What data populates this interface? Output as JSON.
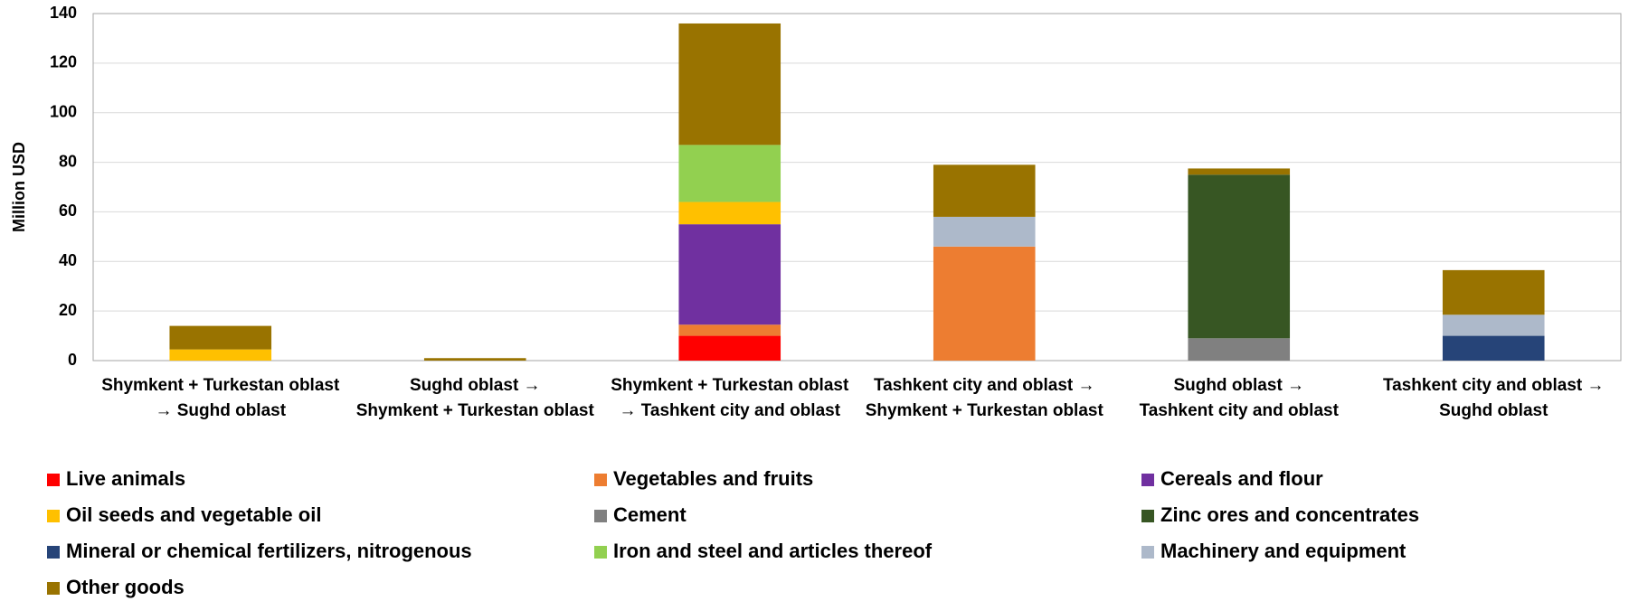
{
  "chart_data": {
    "type": "stacked_bar",
    "y_label": "Million USD",
    "categories": [
      [
        "Shymkent + Turkestan oblast",
        "→ Sughd oblast"
      ],
      [
        "Sughd oblast →",
        "Shymkent + Turkestan oblast"
      ],
      [
        "Shymkent + Turkestan oblast",
        "→ Tashkent city and oblast"
      ],
      [
        "Tashkent city and oblast →",
        "Shymkent + Turkestan oblast"
      ],
      [
        "Sughd oblast →",
        "Tashkent city and oblast"
      ],
      [
        "Tashkent city and oblast →",
        "Sughd oblast"
      ]
    ],
    "series": [
      {
        "name": "Live animals",
        "color": "#ff0000",
        "values": [
          0,
          0,
          10,
          0,
          0,
          0
        ]
      },
      {
        "name": "Vegetables and fruits",
        "color": "#ed7d31",
        "values": [
          0,
          0,
          4.5,
          46,
          0,
          0
        ]
      },
      {
        "name": "Cereals and flour",
        "color": "#7030a0",
        "values": [
          0,
          0,
          40.5,
          0,
          0,
          0
        ]
      },
      {
        "name": "Oil seeds and vegetable oil",
        "color": "#ffc000",
        "values": [
          4.5,
          0,
          9,
          0,
          0,
          0
        ]
      },
      {
        "name": "Cement",
        "color": "#808080",
        "values": [
          0,
          0,
          0,
          0,
          9,
          0
        ]
      },
      {
        "name": "Zinc ores and concentrates",
        "color": "#375623",
        "values": [
          0,
          0,
          0,
          0,
          66,
          0
        ]
      },
      {
        "name": "Mineral or chemical fertilizers, nitrogenous",
        "color": "#264478",
        "values": [
          0,
          0,
          0,
          0,
          0,
          10
        ]
      },
      {
        "name": "Iron and steel and articles thereof",
        "color": "#92d050",
        "values": [
          0,
          0,
          23,
          0,
          0,
          0
        ]
      },
      {
        "name": "Machinery and equipment",
        "color": "#adb9ca",
        "values": [
          0,
          0,
          0,
          12,
          0,
          8.5
        ]
      },
      {
        "name": "Other goods",
        "color": "#997300",
        "values": [
          9.5,
          1,
          49,
          21,
          2.5,
          18
        ]
      }
    ],
    "ylim": [
      0,
      140
    ],
    "yticks": [
      0,
      20,
      40,
      60,
      80,
      100,
      120,
      140
    ],
    "grid": true
  }
}
